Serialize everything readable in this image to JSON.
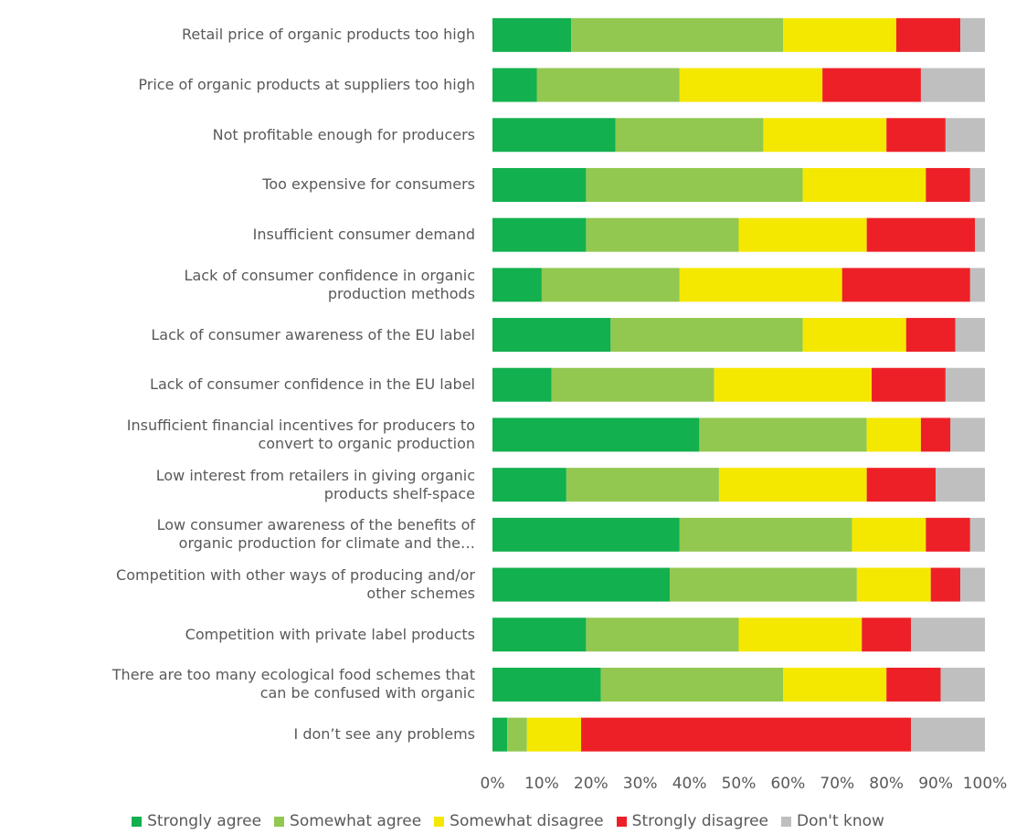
{
  "chart_data": {
    "type": "stacked_barh",
    "categories": [
      "Retail price of organic products too high",
      "Price of organic products at suppliers too high",
      "Not profitable enough for producers",
      "Too expensive for consumers",
      "Insufficient consumer demand",
      "Lack of consumer confidence in organic\nproduction methods",
      "Lack of consumer awareness of the EU label",
      "Lack of consumer confidence in the EU label",
      "Insufficient financial incentives for producers to\nconvert to organic production",
      "Low interest from retailers in giving organic\nproducts shelf-space",
      "Low consumer awareness of the benefits of\norganic production for climate and the…",
      "Competition with other ways of producing and/or\nother schemes",
      "Competition with private label products",
      "There are too many ecological food schemes that\ncan be confused with organic",
      "I don’t see any problems"
    ],
    "series": [
      {
        "name": "Strongly agree",
        "color": "#12b04e",
        "values": [
          16,
          9,
          25,
          19,
          19,
          10,
          24,
          12,
          42,
          15,
          38,
          36,
          19,
          22,
          3
        ]
      },
      {
        "name": "Somewhat agree",
        "color": "#92c850",
        "values": [
          43,
          29,
          30,
          44,
          31,
          28,
          39,
          33,
          34,
          31,
          35,
          38,
          31,
          37,
          4
        ]
      },
      {
        "name": "Somewhat disagree",
        "color": "#f5e800",
        "values": [
          23,
          29,
          25,
          25,
          26,
          33,
          21,
          32,
          11,
          30,
          15,
          15,
          25,
          21,
          11
        ]
      },
      {
        "name": "Strongly disagree",
        "color": "#ee2027",
        "values": [
          13,
          20,
          12,
          9,
          22,
          26,
          10,
          15,
          6,
          14,
          9,
          6,
          10,
          11,
          67
        ]
      },
      {
        "name": "Don't know",
        "color": "#bfbfbf",
        "values": [
          5,
          13,
          8,
          3,
          2,
          3,
          6,
          8,
          7,
          10,
          3,
          5,
          15,
          9,
          15
        ]
      }
    ],
    "xlim": [
      0,
      100
    ],
    "xticks": [
      {
        "value": 0,
        "label": "0%"
      },
      {
        "value": 10,
        "label": "10%"
      },
      {
        "value": 20,
        "label": "20%"
      },
      {
        "value": 30,
        "label": "30%"
      },
      {
        "value": 40,
        "label": "40%"
      },
      {
        "value": 50,
        "label": "50%"
      },
      {
        "value": 60,
        "label": "60%"
      },
      {
        "value": 70,
        "label": "70%"
      },
      {
        "value": 80,
        "label": "80%"
      },
      {
        "value": 90,
        "label": "90%"
      },
      {
        "value": 100,
        "label": "100%"
      }
    ]
  }
}
